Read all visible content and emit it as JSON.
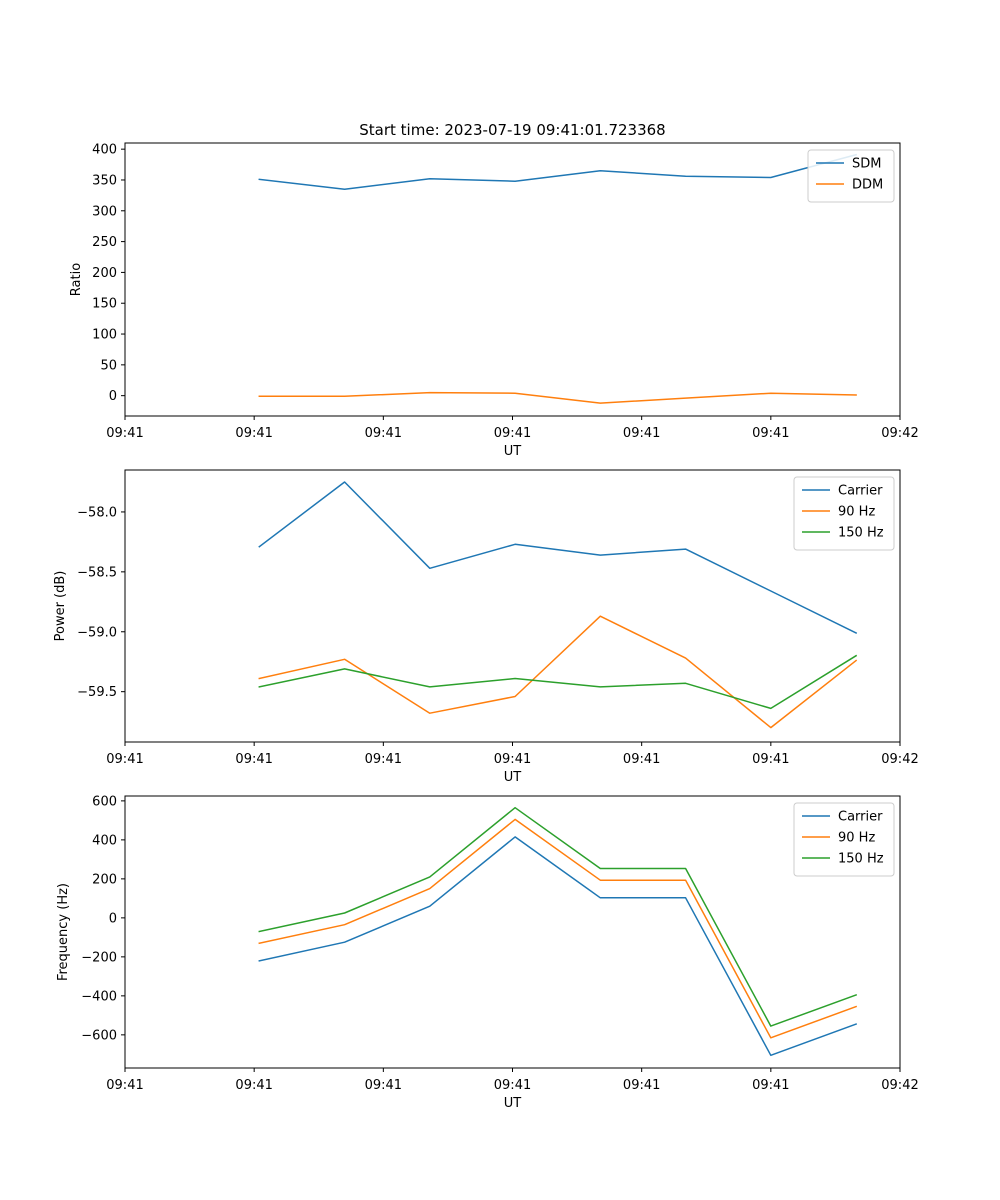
{
  "chart_data": [
    {
      "type": "line",
      "title": "Start time: 2023-07-19 09:41:01.723368",
      "xlabel": "UT",
      "ylabel": "Ratio",
      "x": [
        0.52,
        0.85,
        1.18,
        1.51,
        1.84,
        2.17,
        2.5,
        2.83
      ],
      "xlim": [
        0,
        3.0
      ],
      "xticks": [
        0,
        0.5,
        1.0,
        1.5,
        2.0,
        2.5,
        3.0
      ],
      "xtick_labels": [
        "09:41",
        "09:41",
        "09:41",
        "09:41",
        "09:41",
        "09:41",
        "09:42"
      ],
      "ylim": [
        -33,
        410
      ],
      "yticks": [
        0,
        50,
        100,
        150,
        200,
        250,
        300,
        350,
        400
      ],
      "ytick_labels": [
        "0",
        "50",
        "100",
        "150",
        "200",
        "250",
        "300",
        "350",
        "400"
      ],
      "legend_position": "top-right",
      "series": [
        {
          "name": "SDM",
          "color": "#1f77b4",
          "values": [
            351,
            335,
            352,
            348,
            365,
            356,
            354,
            391
          ]
        },
        {
          "name": "DDM",
          "color": "#ff7f0e",
          "values": [
            -1,
            -1,
            5,
            4,
            -12,
            -4,
            4,
            1
          ]
        }
      ]
    },
    {
      "type": "line",
      "title": "",
      "xlabel": "UT",
      "ylabel": "Power (dB)",
      "x": [
        0.52,
        0.85,
        1.18,
        1.51,
        1.84,
        2.17,
        2.5,
        2.83
      ],
      "xlim": [
        0,
        3.0
      ],
      "xticks": [
        0,
        0.5,
        1.0,
        1.5,
        2.0,
        2.5,
        3.0
      ],
      "xtick_labels": [
        "09:41",
        "09:41",
        "09:41",
        "09:41",
        "09:41",
        "09:41",
        "09:42"
      ],
      "ylim": [
        -59.92,
        -57.65
      ],
      "yticks": [
        -58.0,
        -58.5,
        -59.0,
        -59.5
      ],
      "ytick_labels": [
        "−58.0",
        "−58.5",
        "−59.0",
        "−59.5"
      ],
      "legend_position": "top-right",
      "series": [
        {
          "name": "Carrier",
          "color": "#1f77b4",
          "values": [
            -58.29,
            -57.75,
            -58.47,
            -58.27,
            -58.36,
            -58.31,
            -58.66,
            -59.01
          ]
        },
        {
          "name": "90 Hz",
          "color": "#ff7f0e",
          "values": [
            -59.39,
            -59.23,
            -59.68,
            -59.54,
            -58.87,
            -59.22,
            -59.8,
            -59.24
          ]
        },
        {
          "name": "150 Hz",
          "color": "#2ca02c",
          "values": [
            -59.46,
            -59.31,
            -59.46,
            -59.39,
            -59.46,
            -59.43,
            -59.64,
            -59.2
          ]
        }
      ]
    },
    {
      "type": "line",
      "title": "",
      "xlabel": "UT",
      "ylabel": "Frequency (Hz)",
      "x": [
        0.52,
        0.85,
        1.18,
        1.51,
        1.84,
        2.17,
        2.5,
        2.83
      ],
      "xlim": [
        0,
        3.0
      ],
      "xticks": [
        0,
        0.5,
        1.0,
        1.5,
        2.0,
        2.5,
        3.0
      ],
      "xtick_labels": [
        "09:41",
        "09:41",
        "09:41",
        "09:41",
        "09:41",
        "09:41",
        "09:42"
      ],
      "ylim": [
        -770,
        625
      ],
      "yticks": [
        600,
        400,
        200,
        0,
        -200,
        -400,
        -600
      ],
      "ytick_labels": [
        "600",
        "400",
        "200",
        "0",
        "−200",
        "−400",
        "−600"
      ],
      "legend_position": "top-right",
      "series": [
        {
          "name": "Carrier",
          "color": "#1f77b4",
          "values": [
            -220,
            -125,
            60,
            415,
            103,
            103,
            -705,
            -545
          ]
        },
        {
          "name": "90 Hz",
          "color": "#ff7f0e",
          "values": [
            -130,
            -35,
            150,
            505,
            193,
            193,
            -615,
            -455
          ]
        },
        {
          "name": "150 Hz",
          "color": "#2ca02c",
          "values": [
            -70,
            25,
            210,
            565,
            253,
            253,
            -555,
            -395
          ]
        }
      ]
    }
  ]
}
